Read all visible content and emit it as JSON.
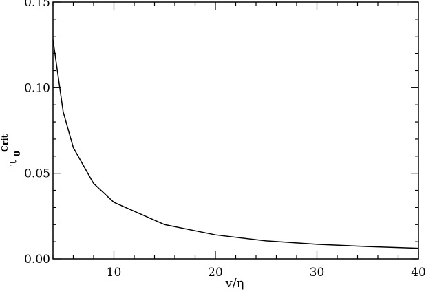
{
  "chart_data": {
    "type": "line",
    "title": "",
    "xlabel": "v/η",
    "ylabel": {
      "base": "τ",
      "subscript": "0",
      "superscript": "Crit"
    },
    "xlim": [
      4,
      40
    ],
    "ylim": [
      0.0,
      0.15
    ],
    "x_ticks": [
      10,
      20,
      30,
      40
    ],
    "x_tick_labels": [
      "10",
      "20",
      "30",
      "40"
    ],
    "y_ticks": [
      0.0,
      0.05,
      0.1,
      0.15
    ],
    "y_tick_labels": [
      "0.00",
      "0.05",
      "0.10",
      "0.15"
    ],
    "x_minor_step": 2,
    "y_minor_step": 0.01,
    "grid": false,
    "series": [
      {
        "x": [
          4,
          5,
          6,
          8,
          10,
          15,
          20,
          25,
          30,
          35,
          40
        ],
        "y": [
          0.128,
          0.086,
          0.065,
          0.044,
          0.033,
          0.02,
          0.014,
          0.0105,
          0.0085,
          0.0072,
          0.0062
        ]
      }
    ],
    "line_color": "#000000"
  }
}
